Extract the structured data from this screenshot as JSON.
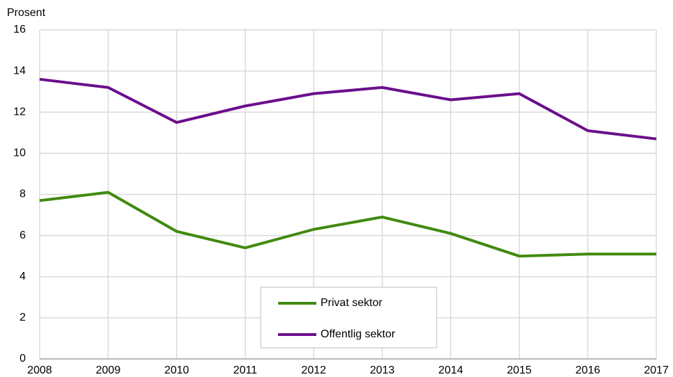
{
  "chart_data": {
    "type": "line",
    "y_label": "Prosent",
    "x": [
      2008,
      2009,
      2010,
      2011,
      2012,
      2013,
      2014,
      2015,
      2016,
      2017
    ],
    "xlim": [
      2008,
      2017
    ],
    "xticks": [
      2008,
      2009,
      2010,
      2011,
      2012,
      2013,
      2014,
      2015,
      2016,
      2017
    ],
    "ylim": [
      0,
      16
    ],
    "yticks": [
      0,
      2,
      4,
      6,
      8,
      10,
      12,
      14,
      16
    ],
    "grid": true,
    "legend": "lower center",
    "series": [
      {
        "name": "Privat sektor",
        "color": "#418a10",
        "values": [
          7.7,
          8.1,
          6.2,
          5.4,
          6.3,
          6.9,
          6.1,
          5.0,
          5.1,
          5.1
        ]
      },
      {
        "name": "Offentlig sektor",
        "color": "#6b0e8c",
        "values": [
          13.6,
          13.2,
          11.5,
          12.3,
          12.9,
          13.2,
          12.6,
          12.9,
          11.1,
          10.7
        ]
      }
    ]
  }
}
